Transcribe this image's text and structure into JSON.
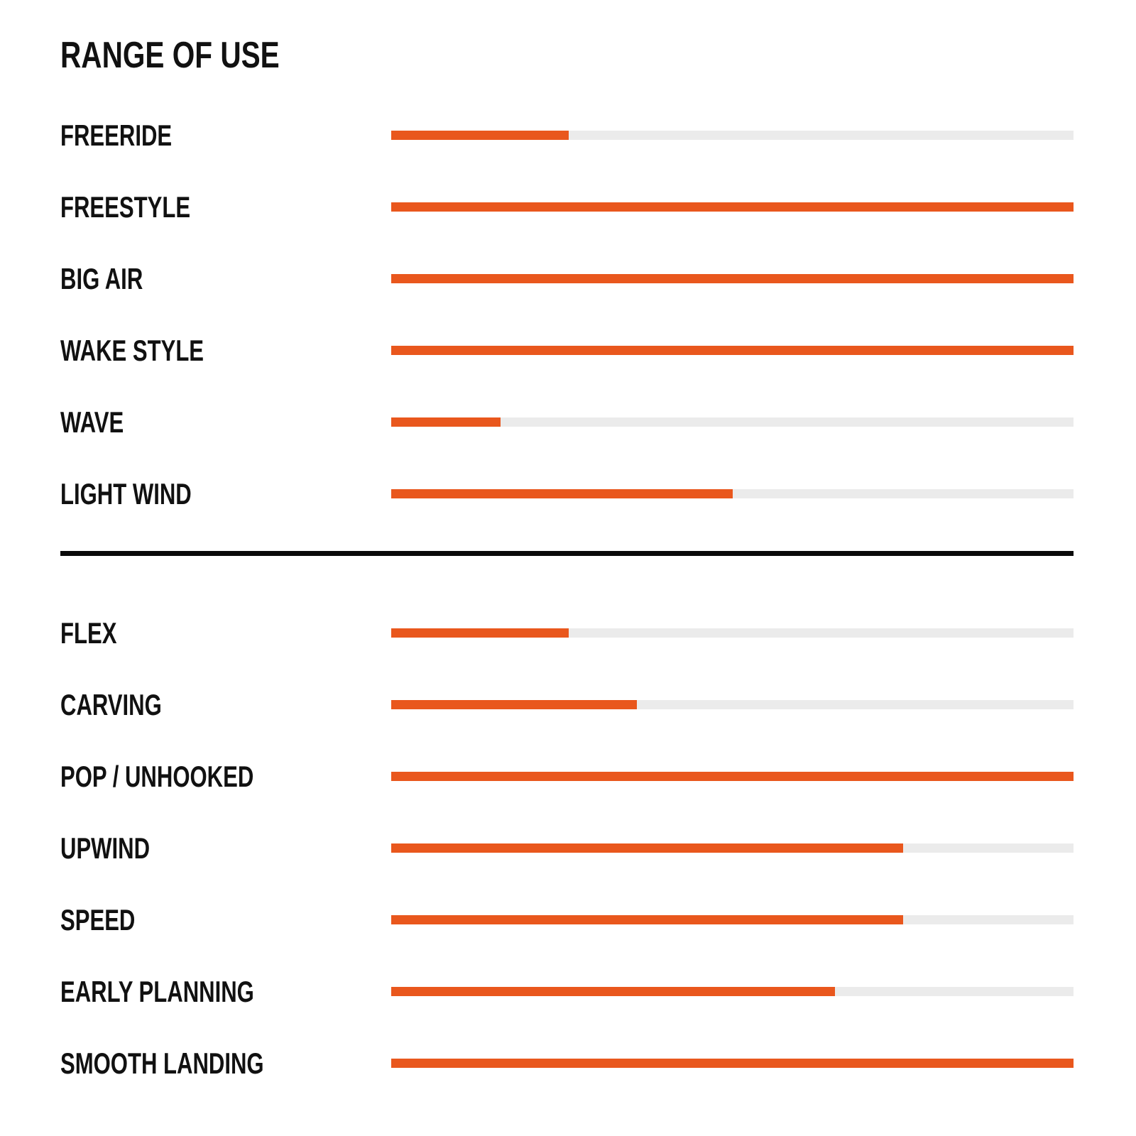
{
  "page": {
    "title": "RANGE OF USE"
  },
  "colors": {
    "accent": "#E9571D",
    "track": "#EBEBEB",
    "text": "#111111",
    "divider": "#0A0A0A",
    "background": "#FFFFFF"
  },
  "chart_data": {
    "type": "bar",
    "orientation": "horizontal",
    "title": "RANGE OF USE",
    "unit": "percent of full bar",
    "value_range": [
      0,
      100
    ],
    "grid": false,
    "legend": false,
    "sections": [
      {
        "name": "riding-styles",
        "categories": [
          "FREERIDE",
          "FREESTYLE",
          "BIG AIR",
          "WAKE STYLE",
          "WAVE",
          "LIGHT WIND"
        ],
        "values": [
          26,
          100,
          100,
          100,
          16,
          50
        ]
      },
      {
        "name": "board-characteristics",
        "categories": [
          "FLEX",
          "CARVING",
          "POP / UNHOOKED",
          "UPWIND",
          "SPEED",
          "EARLY PLANNING",
          "SMOOTH LANDING"
        ],
        "values": [
          26,
          36,
          100,
          75,
          75,
          65,
          100
        ]
      }
    ]
  }
}
